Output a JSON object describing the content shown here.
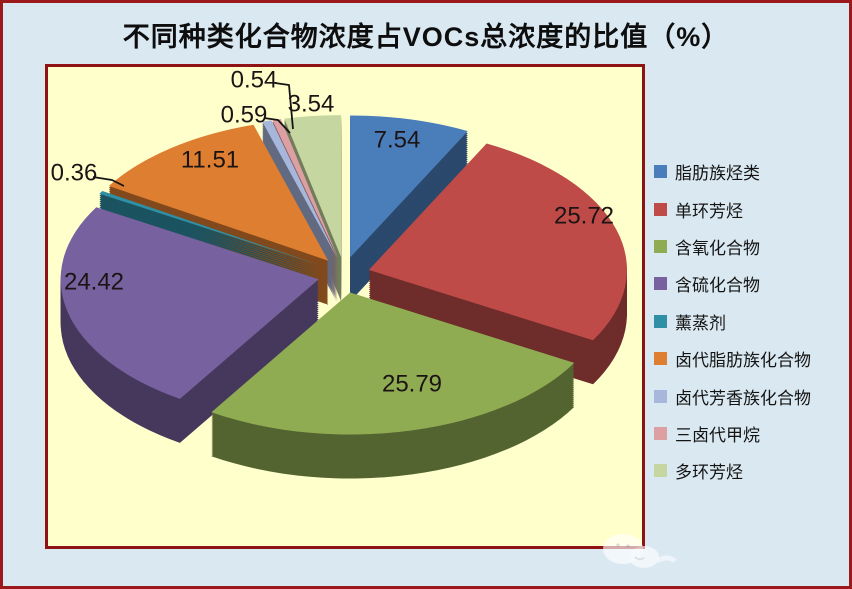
{
  "title": {
    "text": "不同种类化合物浓度占VOCs总浓度的比值（%）"
  },
  "page": {
    "background": "#DAE8F1",
    "border_color": "#9B181B"
  },
  "plot": {
    "background": "#FFFFCC",
    "border_color": "#8F1215"
  },
  "chart_data": {
    "type": "pie",
    "style": "3d-exploded",
    "title": "不同种类化合物浓度占VOCs总浓度的比值（%）",
    "unit": "%",
    "start_angle_deg": -90,
    "direction": "clockwise",
    "legend_position": "right",
    "data_labels": "outside-and-inside, two decimals",
    "series": [
      {
        "label": "脂肪族烃类",
        "value": 7.54,
        "color": "#4A7EBB"
      },
      {
        "label": "单环芳烃",
        "value": 25.72,
        "color": "#BE4B48"
      },
      {
        "label": "含氧化合物",
        "value": 25.79,
        "color": "#8FAC52"
      },
      {
        "label": "含硫化合物",
        "value": 24.42,
        "color": "#77619F"
      },
      {
        "label": "薰蒸剂",
        "value": 0.36,
        "color": "#2F8FA5"
      },
      {
        "label": "卤代脂肪族化合物",
        "value": 11.51,
        "color": "#DE7E30"
      },
      {
        "label": "卤代芳香族化合物",
        "value": 0.59,
        "color": "#A7B7DC"
      },
      {
        "label": "三卤代甲烷",
        "value": 0.54,
        "color": "#DCA0A3"
      },
      {
        "label": "多环芳烃",
        "value": 3.54,
        "color": "#C6D6A0"
      }
    ]
  }
}
